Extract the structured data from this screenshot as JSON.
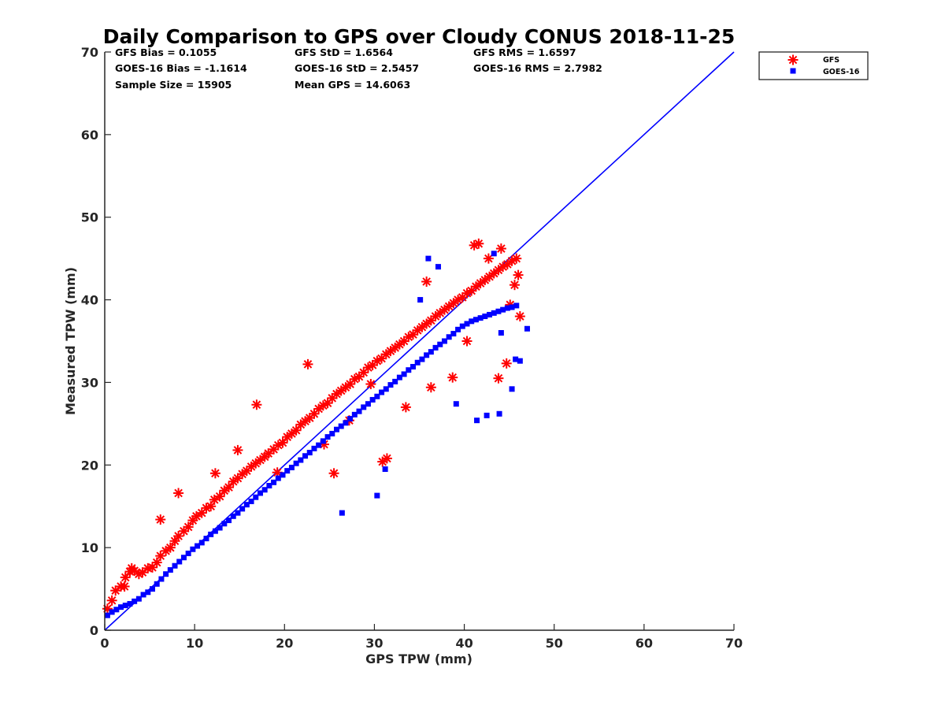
{
  "chart_data": {
    "type": "scatter",
    "title": "Daily Comparison to GPS over Cloudy CONUS 2018-11-25",
    "xlabel": "GPS TPW (mm)",
    "ylabel": "Measured TPW (mm)",
    "xlim": [
      0,
      70
    ],
    "ylim": [
      0,
      70
    ],
    "xticks": [
      0,
      10,
      20,
      30,
      40,
      50,
      60,
      70
    ],
    "yticks": [
      0,
      10,
      20,
      30,
      40,
      50,
      60,
      70
    ],
    "grid": false,
    "legend_position": "outside-top-right",
    "stats": [
      [
        "GFS Bias = 0.1055",
        "GFS StD = 1.6564",
        "GFS RMS = 1.6597"
      ],
      [
        "GOES-16 Bias = -1.1614",
        "GOES-16 StD = 2.5457",
        "GOES-16 RMS = 2.7982"
      ],
      [
        "Sample Size = 15905",
        "Mean GPS = 14.6063",
        ""
      ]
    ],
    "reference_line": {
      "x": [
        0,
        70
      ],
      "y": [
        0,
        70
      ],
      "color": "#0000ff"
    },
    "series": [
      {
        "name": "GFS",
        "marker": "asterisk",
        "color": "#ff0000",
        "x": [
          0.3,
          0.8,
          1.2,
          1.8,
          2.3,
          2.8,
          3.3,
          3.8,
          4.2,
          4.8,
          5.3,
          5.8,
          6.2,
          6.8,
          7.3,
          7.8,
          8.2,
          8.8,
          9.3,
          9.8,
          10.2,
          10.8,
          11.3,
          11.8,
          12.2,
          12.8,
          13.3,
          13.8,
          14.3,
          14.8,
          15.3,
          15.8,
          16.3,
          16.8,
          17.3,
          17.8,
          18.2,
          18.8,
          19.3,
          19.8,
          20.3,
          20.8,
          21.3,
          21.8,
          22.3,
          22.8,
          23.3,
          23.8,
          24.3,
          24.8,
          25.3,
          25.8,
          26.3,
          26.8,
          27.3,
          27.8,
          28.3,
          28.8,
          29.3,
          29.8,
          30.3,
          30.8,
          31.3,
          31.8,
          32.3,
          32.8,
          33.3,
          33.8,
          34.3,
          34.8,
          35.3,
          35.8,
          36.3,
          36.8,
          37.3,
          37.8,
          38.3,
          38.8,
          39.3,
          39.8,
          40.3,
          40.8,
          41.3,
          41.8,
          42.3,
          42.8,
          43.3,
          43.8,
          44.3,
          44.8,
          45.3,
          45.8,
          8.2,
          6.2,
          14.8,
          19.2,
          22.6,
          24.4,
          25.5,
          30.9,
          31.4,
          35.8,
          41.1,
          41.6,
          42.7,
          45.1,
          45.6,
          46.2,
          46.0,
          44.1,
          36.3,
          38.7,
          3.0,
          2.2,
          12.3,
          16.9,
          27.2,
          29.6,
          33.5,
          40.3,
          43.8,
          44.7
        ],
        "y": [
          2.6,
          3.6,
          4.8,
          5.3,
          6.4,
          7.1,
          7.2,
          6.8,
          7.0,
          7.5,
          7.6,
          8.2,
          9.0,
          9.6,
          10.0,
          10.8,
          11.4,
          12.0,
          12.5,
          13.3,
          13.8,
          14.2,
          14.8,
          15.0,
          15.8,
          16.2,
          16.9,
          17.3,
          18.0,
          18.4,
          18.9,
          19.3,
          19.8,
          20.2,
          20.6,
          21.0,
          21.4,
          21.9,
          22.4,
          22.7,
          23.4,
          23.8,
          24.2,
          24.9,
          25.3,
          25.7,
          26.2,
          26.8,
          27.2,
          27.5,
          28.1,
          28.6,
          29.0,
          29.4,
          29.8,
          30.4,
          30.7,
          31.2,
          31.8,
          32.1,
          32.6,
          32.9,
          33.4,
          33.8,
          34.2,
          34.6,
          35.0,
          35.5,
          35.8,
          36.3,
          36.7,
          37.1,
          37.5,
          38.0,
          38.4,
          38.8,
          39.2,
          39.6,
          40.0,
          40.3,
          40.8,
          41.1,
          41.6,
          42.0,
          42.4,
          42.8,
          43.2,
          43.6,
          44.0,
          44.3,
          44.7,
          45.0,
          16.6,
          13.4,
          21.8,
          19.1,
          32.2,
          22.5,
          19.0,
          20.4,
          20.8,
          42.2,
          46.6,
          46.8,
          45.0,
          39.4,
          41.8,
          38.0,
          43.0,
          46.2,
          29.4,
          30.6,
          7.5,
          5.3,
          19.0,
          27.3,
          25.4,
          29.8,
          27.0,
          35.0,
          30.5,
          32.3
        ]
      },
      {
        "name": "GOES-16",
        "marker": "square",
        "color": "#0000ff",
        "x": [
          0.3,
          0.8,
          1.3,
          1.8,
          2.3,
          2.8,
          3.3,
          3.8,
          4.3,
          4.8,
          5.3,
          5.8,
          6.3,
          6.8,
          7.3,
          7.8,
          8.3,
          8.8,
          9.3,
          9.8,
          10.3,
          10.8,
          11.3,
          11.8,
          12.3,
          12.8,
          13.3,
          13.8,
          14.3,
          14.8,
          15.3,
          15.8,
          16.3,
          16.8,
          17.3,
          17.8,
          18.3,
          18.8,
          19.3,
          19.8,
          20.3,
          20.8,
          21.3,
          21.8,
          22.3,
          22.8,
          23.3,
          23.8,
          24.3,
          24.8,
          25.3,
          25.8,
          26.3,
          26.8,
          27.3,
          27.8,
          28.3,
          28.8,
          29.3,
          29.8,
          30.3,
          30.8,
          31.3,
          31.8,
          32.3,
          32.8,
          33.3,
          33.8,
          34.3,
          34.8,
          35.3,
          35.8,
          36.3,
          36.8,
          37.3,
          37.8,
          38.3,
          38.8,
          39.3,
          39.8,
          40.3,
          40.8,
          41.3,
          41.8,
          42.3,
          42.8,
          43.3,
          43.8,
          44.3,
          44.8,
          45.3,
          45.8,
          36.0,
          37.1,
          43.3,
          44.1,
          41.4,
          42.5,
          45.7,
          46.2,
          35.1,
          43.9,
          30.3,
          31.2,
          26.4,
          39.1,
          47.0,
          45.3
        ],
        "y": [
          1.8,
          2.2,
          2.5,
          2.8,
          3.0,
          3.2,
          3.5,
          3.8,
          4.3,
          4.6,
          5.0,
          5.6,
          6.2,
          6.8,
          7.3,
          7.8,
          8.3,
          8.8,
          9.3,
          9.8,
          10.2,
          10.6,
          11.1,
          11.6,
          12.0,
          12.4,
          12.9,
          13.3,
          13.8,
          14.2,
          14.7,
          15.2,
          15.6,
          16.1,
          16.6,
          17.0,
          17.5,
          17.9,
          18.4,
          18.8,
          19.3,
          19.7,
          20.2,
          20.6,
          21.1,
          21.5,
          22.0,
          22.4,
          22.9,
          23.4,
          23.8,
          24.3,
          24.7,
          25.1,
          25.6,
          26.1,
          26.5,
          27.0,
          27.4,
          27.9,
          28.3,
          28.8,
          29.2,
          29.7,
          30.1,
          30.6,
          31.0,
          31.5,
          31.9,
          32.4,
          32.8,
          33.3,
          33.7,
          34.2,
          34.6,
          35.0,
          35.5,
          35.9,
          36.4,
          36.8,
          37.1,
          37.4,
          37.6,
          37.8,
          38.0,
          38.2,
          38.4,
          38.6,
          38.8,
          39.0,
          39.1,
          39.3,
          45.0,
          44.0,
          45.6,
          36.0,
          25.4,
          26.0,
          32.8,
          32.6,
          40.0,
          26.2,
          16.3,
          19.5,
          14.2,
          27.4,
          36.5,
          29.2
        ]
      }
    ]
  }
}
